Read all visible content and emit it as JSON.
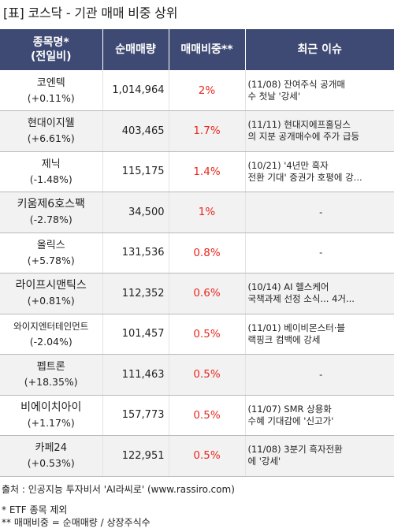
{
  "title": "[표] 코스닥 - 기관 매매 비중 상위",
  "headers": {
    "name": "종목명*",
    "name_sub": "(전일비)",
    "volume": "순매매량",
    "ratio": "매매비중**",
    "issue": "최근 이슈"
  },
  "rows": [
    {
      "name": "코엔텍",
      "change": "(+0.11%)",
      "volume": "1,014,964",
      "ratio": "2%",
      "issue": "(11/08) 잔여주식 공개매\n수 첫날 '강세'"
    },
    {
      "name": "현대이지웰",
      "change": "(+6.61%)",
      "volume": "403,465",
      "ratio": "1.7%",
      "issue": "(11/11) 현대지에프홀딩스\n의 지분 공개매수에 주가 급등"
    },
    {
      "name": "제닉",
      "change": "(-1.48%)",
      "volume": "115,175",
      "ratio": "1.4%",
      "issue": "(10/21) '4년만 흑자\n전환 기대' 증권가 호평에 강..."
    },
    {
      "name": "키움제6호스팩",
      "change": "(-2.78%)",
      "volume": "34,500",
      "ratio": "1%",
      "issue": "-"
    },
    {
      "name": "올릭스",
      "change": "(+5.78%)",
      "volume": "131,536",
      "ratio": "0.8%",
      "issue": "-"
    },
    {
      "name": "라이프시맨틱스",
      "change": "(+0.81%)",
      "volume": "112,352",
      "ratio": "0.6%",
      "issue": "(10/14) AI 헬스케어\n국책과제 선정 소식... 4거..."
    },
    {
      "name": "와이지엔터테인먼트",
      "change": "(-2.04%)",
      "volume": "101,457",
      "ratio": "0.5%",
      "issue": "(11/01) 베이비몬스터·블\n랙핑크 컴백에 강세"
    },
    {
      "name": "펩트론",
      "change": "(+18.35%)",
      "volume": "111,463",
      "ratio": "0.5%",
      "issue": "-"
    },
    {
      "name": "비에이치아이",
      "change": "(+1.17%)",
      "volume": "157,773",
      "ratio": "0.5%",
      "issue": "(11/07) SMR 상용화\n수혜 기대감에 '신고가'"
    },
    {
      "name": "카페24",
      "change": "(+0.53%)",
      "volume": "122,951",
      "ratio": "0.5%",
      "issue": "(11/08) 3분기 흑자전환\n에 '강세'"
    }
  ],
  "footer": {
    "source": "출처 : 인공지능 투자비서 'AI라씨로' (www.rassiro.com)",
    "note1": "* ETF 종목 제외",
    "note2": "** 매매비중 = 순매매량 / 상장주식수"
  },
  "colors": {
    "header_bg": "#3e4a73",
    "ratio_text": "#e8281e",
    "row_shade": "#f2f2f2"
  }
}
